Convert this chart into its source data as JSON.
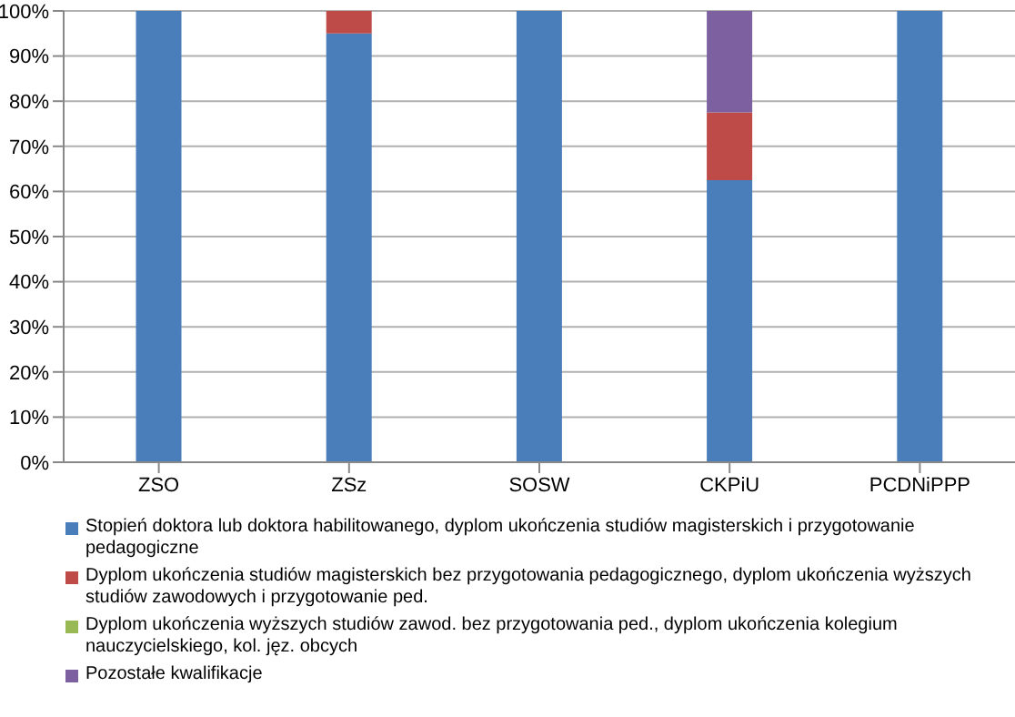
{
  "chart_data": {
    "type": "bar",
    "stacked": true,
    "categories": [
      "ZSO",
      "ZSz",
      "SOSW",
      "CKPiU",
      "PCDNiPPP"
    ],
    "series": [
      {
        "name": "Stopień doktora lub doktora habilitowanego, dyplom ukończenia studiów magisterskich i przygotowanie pedagogiczne",
        "color": "#4a7ebb",
        "values": [
          100,
          95,
          100,
          62.5,
          100
        ]
      },
      {
        "name": "Dyplom ukończenia studiów magisterskich bez przygotowania pedagogicznego, dyplom ukończenia wyższych studiów zawodowych i przygotowanie ped.",
        "color": "#be4b48",
        "values": [
          0,
          5,
          0,
          15,
          0
        ]
      },
      {
        "name": "Dyplom ukończenia wyższych studiów  zawod. bez przygotowania ped., dyplom ukończenia kolegium nauczycielskiego, kol. jęz. obcych",
        "color": "#98b954",
        "values": [
          0,
          0,
          0,
          0,
          0
        ]
      },
      {
        "name": "Pozostałe kwalifikacje",
        "color": "#7d60a0",
        "values": [
          0,
          0,
          0,
          22.5,
          0
        ]
      }
    ],
    "ylim": [
      0,
      100
    ],
    "yticks": [
      {
        "value": 0,
        "label": "0%"
      },
      {
        "value": 10,
        "label": "10%"
      },
      {
        "value": 20,
        "label": "20%"
      },
      {
        "value": 30,
        "label": "30%"
      },
      {
        "value": 40,
        "label": "40%"
      },
      {
        "value": 50,
        "label": "50%"
      },
      {
        "value": 60,
        "label": "60%"
      },
      {
        "value": 70,
        "label": "70%"
      },
      {
        "value": 80,
        "label": "80%"
      },
      {
        "value": 90,
        "label": "90%"
      },
      {
        "value": 100,
        "label": "100%"
      }
    ],
    "grid": "y",
    "legend": "bottom"
  }
}
